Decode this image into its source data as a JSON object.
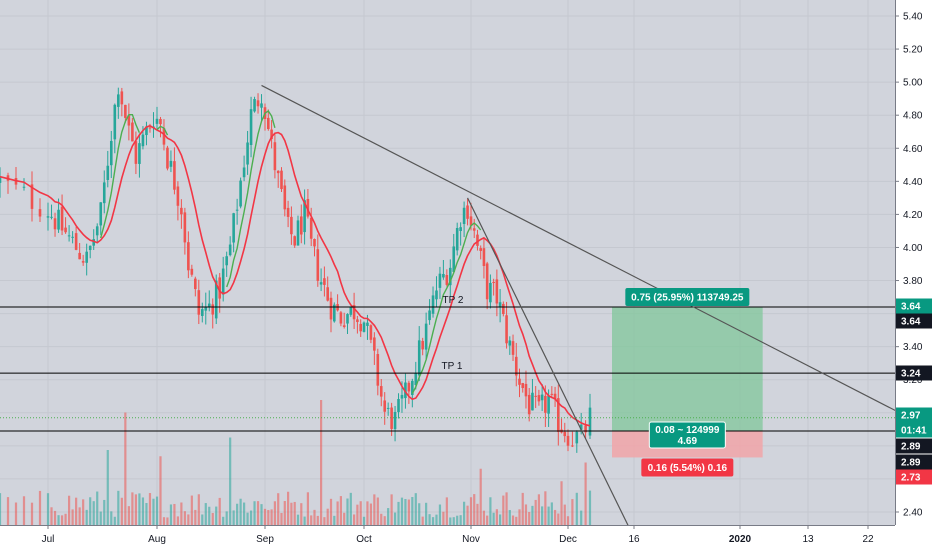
{
  "chart_data": {
    "type": "candlestick",
    "colors": {
      "background": "#ffffff",
      "plot_bg": "#d1d4dc",
      "up": "#26a69a",
      "down": "#ef5350",
      "volume_up": "#26a69a",
      "volume_down": "#ef5350",
      "ma_fast": "#4caf50",
      "ma_slow": "#f23645",
      "level_line": "#000000",
      "trend_line": "#555555",
      "target_zone": "#80c79b",
      "stop_zone": "#f1a5a8",
      "profit_badge": "#089981",
      "loss_badge": "#f23645",
      "last_price_green": "#089981",
      "dotted_line": "#4caf50"
    },
    "x_axis": {
      "ticks": [
        "Jul",
        "Aug",
        "Sep",
        "Oct",
        "Nov",
        "Dec",
        "16",
        "2020",
        "13",
        "22"
      ]
    },
    "y_axis": {
      "range": [
        2.33,
        5.49
      ],
      "ticks": [
        2.4,
        2.6,
        2.8,
        3.0,
        3.2,
        3.4,
        3.6,
        3.8,
        4.0,
        4.2,
        4.4,
        4.6,
        4.8,
        5.0,
        5.2,
        5.4
      ]
    },
    "price_path": [
      [
        "2019-06-25",
        4.4
      ],
      [
        "2019-07-02",
        4.2
      ],
      [
        "2019-07-09",
        4.0
      ],
      [
        "2019-07-12",
        3.92
      ],
      [
        "2019-07-16",
        4.2
      ],
      [
        "2019-07-19",
        4.7
      ],
      [
        "2019-07-21",
        5.0
      ],
      [
        "2019-07-24",
        4.7
      ],
      [
        "2019-07-26",
        4.55
      ],
      [
        "2019-07-31",
        4.8
      ],
      [
        "2019-08-02",
        4.75
      ],
      [
        "2019-08-04",
        4.55
      ],
      [
        "2019-08-08",
        4.25
      ],
      [
        "2019-08-10",
        3.9
      ],
      [
        "2019-08-13",
        3.6
      ],
      [
        "2019-08-16",
        3.64
      ],
      [
        "2019-08-19",
        3.75
      ],
      [
        "2019-08-22",
        4.0
      ],
      [
        "2019-08-25",
        4.4
      ],
      [
        "2019-08-28",
        4.8
      ],
      [
        "2019-08-31",
        4.95
      ],
      [
        "2019-09-03",
        4.6
      ],
      [
        "2019-09-06",
        4.3
      ],
      [
        "2019-09-08",
        4.1
      ],
      [
        "2019-09-10",
        4.05
      ],
      [
        "2019-09-13",
        4.2
      ],
      [
        "2019-09-15",
        4.0
      ],
      [
        "2019-09-18",
        3.8
      ],
      [
        "2019-09-21",
        3.65
      ],
      [
        "2019-09-24",
        3.58
      ],
      [
        "2019-09-28",
        3.62
      ],
      [
        "2019-10-01",
        3.56
      ],
      [
        "2019-10-04",
        3.3
      ],
      [
        "2019-10-07",
        3.0
      ],
      [
        "2019-10-10",
        2.95
      ],
      [
        "2019-10-13",
        3.1
      ],
      [
        "2019-10-16",
        3.3
      ],
      [
        "2019-10-19",
        3.5
      ],
      [
        "2019-10-22",
        3.75
      ],
      [
        "2019-10-26",
        3.9
      ],
      [
        "2019-10-29",
        4.2
      ],
      [
        "2019-10-31",
        4.25
      ],
      [
        "2019-11-03",
        4.0
      ],
      [
        "2019-11-06",
        3.75
      ],
      [
        "2019-11-09",
        3.7
      ],
      [
        "2019-11-13",
        3.4
      ],
      [
        "2019-11-16",
        3.2
      ],
      [
        "2019-11-19",
        3.05
      ],
      [
        "2019-11-22",
        3.0
      ],
      [
        "2019-11-25",
        3.08
      ],
      [
        "2019-11-28",
        2.95
      ],
      [
        "2019-12-02",
        2.85
      ],
      [
        "2019-12-04",
        2.85
      ],
      [
        "2019-12-06",
        2.97
      ]
    ],
    "volume_peaks": [
      [
        "2019-07-18",
        0.6
      ],
      [
        "2019-07-23",
        0.9
      ],
      [
        "2019-08-02",
        0.55
      ],
      [
        "2019-08-22",
        0.7
      ],
      [
        "2019-09-18",
        1.0
      ],
      [
        "2019-11-04",
        0.45
      ],
      [
        "2019-11-29",
        0.35
      ],
      [
        "2019-12-05",
        0.5
      ]
    ],
    "horizontal_levels": [
      {
        "price": 3.64,
        "label": "TP 2",
        "tag": "3.64"
      },
      {
        "price": 3.24,
        "label": "TP 1",
        "tag": "3.24"
      },
      {
        "price": 2.89,
        "label": "",
        "tag": "2.89"
      }
    ],
    "trend_lines": [
      {
        "from": [
          "2019-08-31",
          4.98
        ],
        "to": [
          "2020-01-31",
          2.92
        ]
      },
      {
        "from": [
          "2019-10-31",
          4.3
        ],
        "to": [
          "2019-12-15",
          2.3
        ]
      }
    ],
    "position": {
      "entry": 2.89,
      "target": 3.64,
      "stop": 2.73,
      "start": "2019-12-11",
      "end": "2020-01-05",
      "target_label": "0.75 (25.95%) 113749.25",
      "stop_label": "0.16 (5.54%) 0.16",
      "center_label_top": "0.08 ~ 124999",
      "center_label_bottom": "4.69"
    },
    "price_tags": [
      {
        "value": "3.64",
        "style": "green-filled"
      },
      {
        "value": "3.64",
        "style": "black-filled"
      },
      {
        "value": "3.24",
        "style": "black-filled"
      },
      {
        "value": "2.97",
        "style": "green-filled"
      },
      {
        "value": "01:41",
        "style": "green-filled"
      },
      {
        "value": "2.89",
        "style": "black-filled"
      },
      {
        "value": "2.89",
        "style": "black-filled"
      },
      {
        "value": "2.73",
        "style": "red-filled"
      }
    ]
  }
}
